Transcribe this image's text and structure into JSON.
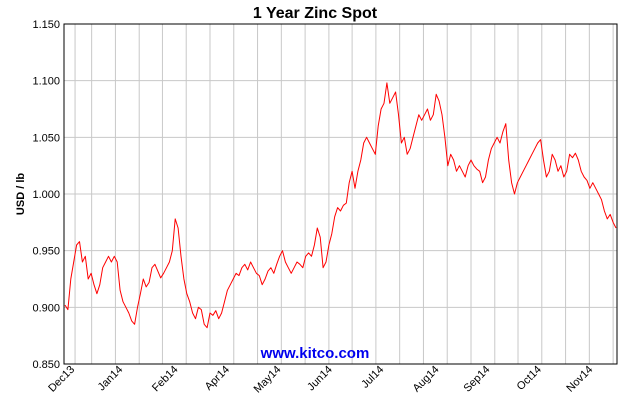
{
  "chart_data": {
    "type": "line",
    "title": "1 Year Zinc Spot",
    "xlabel": "",
    "ylabel": "USD / lb",
    "ylim": [
      0.85,
      1.15
    ],
    "y_ticks": [
      "0.850",
      "0.900",
      "0.950",
      "1.000",
      "1.050",
      "1.100",
      "1.150"
    ],
    "x_ticks": [
      "Dec13",
      "Jan14",
      "Feb14",
      "Apr14",
      "May14",
      "Jun14",
      "Jul14",
      "Aug14",
      "Sep14",
      "Oct14",
      "Nov14"
    ],
    "grid": true,
    "watermark": "www.kitco.com",
    "series": [
      {
        "color": "#ff0000",
        "values": [
          0.902,
          0.898,
          0.925,
          0.94,
          0.955,
          0.958,
          0.94,
          0.945,
          0.925,
          0.93,
          0.92,
          0.912,
          0.92,
          0.935,
          0.94,
          0.945,
          0.94,
          0.945,
          0.94,
          0.915,
          0.905,
          0.9,
          0.895,
          0.888,
          0.885,
          0.9,
          0.912,
          0.925,
          0.918,
          0.922,
          0.935,
          0.938,
          0.932,
          0.926,
          0.93,
          0.935,
          0.94,
          0.95,
          0.978,
          0.97,
          0.945,
          0.925,
          0.912,
          0.905,
          0.895,
          0.89,
          0.9,
          0.898,
          0.885,
          0.882,
          0.895,
          0.893,
          0.897,
          0.89,
          0.895,
          0.905,
          0.915,
          0.92,
          0.925,
          0.93,
          0.928,
          0.935,
          0.938,
          0.933,
          0.94,
          0.935,
          0.93,
          0.928,
          0.92,
          0.925,
          0.932,
          0.935,
          0.93,
          0.938,
          0.945,
          0.95,
          0.94,
          0.935,
          0.93,
          0.935,
          0.94,
          0.938,
          0.935,
          0.945,
          0.948,
          0.945,
          0.955,
          0.97,
          0.962,
          0.935,
          0.94,
          0.955,
          0.965,
          0.98,
          0.988,
          0.985,
          0.99,
          0.992,
          1.01,
          1.02,
          1.005,
          1.02,
          1.03,
          1.045,
          1.05,
          1.045,
          1.04,
          1.035,
          1.06,
          1.075,
          1.08,
          1.098,
          1.08,
          1.085,
          1.09,
          1.07,
          1.045,
          1.05,
          1.035,
          1.04,
          1.05,
          1.06,
          1.07,
          1.065,
          1.07,
          1.075,
          1.065,
          1.07,
          1.088,
          1.082,
          1.07,
          1.05,
          1.025,
          1.035,
          1.03,
          1.02,
          1.025,
          1.02,
          1.015,
          1.025,
          1.03,
          1.025,
          1.022,
          1.02,
          1.01,
          1.015,
          1.03,
          1.04,
          1.045,
          1.05,
          1.045,
          1.055,
          1.062,
          1.03,
          1.01,
          1.0,
          1.01,
          1.015,
          1.02,
          1.025,
          1.03,
          1.035,
          1.04,
          1.045,
          1.048,
          1.03,
          1.015,
          1.02,
          1.035,
          1.03,
          1.02,
          1.025,
          1.015,
          1.02,
          1.035,
          1.032,
          1.036,
          1.03,
          1.02,
          1.015,
          1.012,
          1.005,
          1.01,
          1.005,
          1.0,
          0.995,
          0.985,
          0.978,
          0.982,
          0.975,
          0.97
        ]
      }
    ]
  }
}
